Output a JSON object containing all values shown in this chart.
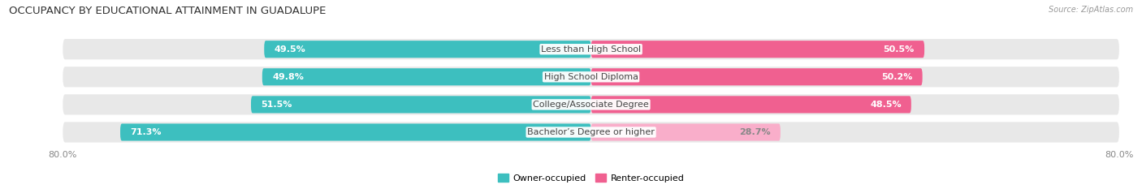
{
  "title": "OCCUPANCY BY EDUCATIONAL ATTAINMENT IN GUADALUPE",
  "source": "Source: ZipAtlas.com",
  "categories": [
    "Less than High School",
    "High School Diploma",
    "College/Associate Degree",
    "Bachelor’s Degree or higher"
  ],
  "owner_values": [
    49.5,
    49.8,
    51.5,
    71.3
  ],
  "renter_values": [
    50.5,
    50.2,
    48.5,
    28.7
  ],
  "owner_color": "#3DBFBF",
  "renter_colors": [
    "#F06090",
    "#F06090",
    "#F06090",
    "#F9AECA"
  ],
  "renter_label_colors": [
    "white",
    "white",
    "white",
    "#888888"
  ],
  "background_color": "#ffffff",
  "bar_bg_color": "#e8e8e8",
  "axis_min": -80.0,
  "axis_max": 80.0,
  "bar_height": 0.62,
  "label_fontsize": 8.0,
  "title_fontsize": 9.5,
  "legend_fontsize": 8.0,
  "source_fontsize": 7.0,
  "category_fontsize": 8.0
}
